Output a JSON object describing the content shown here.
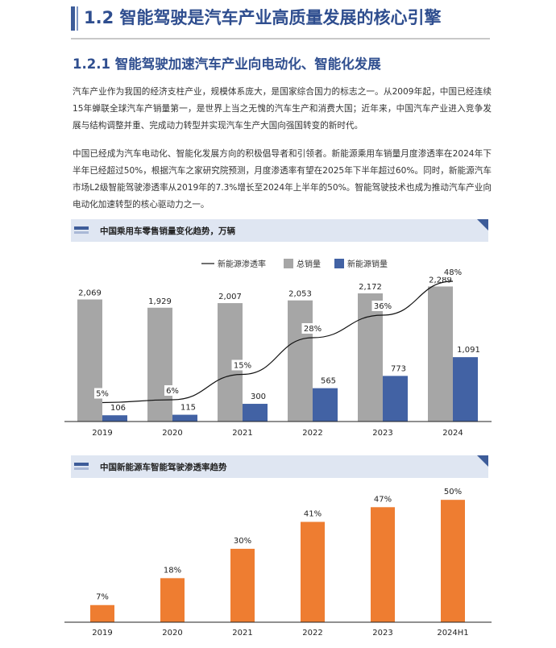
{
  "header": {
    "title": "1.2 智能驾驶是汽车产业高质量发展的核心引擎",
    "subtitle": "1.2.1 智能驾驶加速汽车产业向电动化、智能化发展"
  },
  "paragraphs": [
    "汽车产业作为我国的经济支柱产业，规模体系庞大，是国家综合国力的标志之一。从2009年起，中国已经连续15年蝉联全球汽车产销量第一，是世界上当之无愧的汽车生产和消费大国；近年来，中国汽车产业进入竞争发展与结构调整并重、完成动力转型并实现汽车生产大国向强国转变的新时代。",
    "中国已经成为汽车电动化、智能化发展方向的积极倡导者和引领者。新能源乘用车销量月度渗透率在2024年下半年已经超过50%，根据汽车之家研究院预测，月度渗透率有望在2025年下半年超过60%。同时，新能源汽车市场L2级智能驾驶渗透率从2019年的7.3%增长至2024年上半年的50%。智能驾驶技术也成为推动汽车产业向电动化加速转型的核心驱动力之一。"
  ],
  "colors": {
    "heading": "#2f4e8f",
    "total_bar": "#a6a6a6",
    "nev_bar": "#4262a4",
    "line": "#111111",
    "orange_bar": "#ee7d31",
    "banner_bg": "#dfe6f2"
  },
  "chart_data": [
    {
      "type": "bar",
      "title": "中国乘用车零售销量变化趋势，万辆",
      "categories": [
        "2019",
        "2020",
        "2021",
        "2022",
        "2023",
        "2024"
      ],
      "series": [
        {
          "name": "总销量",
          "type": "bar",
          "values": [
            2069,
            1929,
            2007,
            2053,
            2172,
            2289
          ],
          "labels": [
            "2,069",
            "1,929",
            "2,007",
            "2,053",
            "2,172",
            "2,289"
          ]
        },
        {
          "name": "新能源销量",
          "type": "bar",
          "values": [
            106,
            115,
            300,
            565,
            773,
            1091
          ],
          "labels": [
            "106",
            "115",
            "300",
            "565",
            "773",
            "1,091"
          ]
        },
        {
          "name": "新能源渗透率",
          "type": "line",
          "values": [
            5,
            6,
            15,
            28,
            36,
            48
          ],
          "labels": [
            "5%",
            "6%",
            "15%",
            "28%",
            "36%",
            "48%"
          ]
        }
      ],
      "legend": "top-center",
      "ylim": [
        0,
        2500
      ]
    },
    {
      "type": "bar",
      "title": "中国新能源车智能驾驶渗透率趋势",
      "categories": [
        "2019",
        "2020",
        "2021",
        "2022",
        "2023",
        "2024H1"
      ],
      "values": [
        7,
        18,
        30,
        41,
        47,
        50
      ],
      "labels": [
        "7%",
        "18%",
        "30%",
        "41%",
        "47%",
        "50%"
      ],
      "ylim": [
        0,
        55
      ]
    }
  ]
}
